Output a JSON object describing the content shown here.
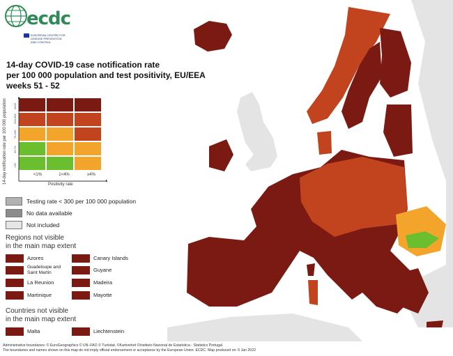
{
  "logo": {
    "text": "ecdc",
    "subtitle_lines": [
      "EUROPEAN CENTRE FOR",
      "DISEASE PREVENTION",
      "AND CONTROL"
    ]
  },
  "title_lines": [
    "14-day COVID-19 case notification rate",
    "per 100 000 population and test positivity, EU/EEA",
    "weeks 51 - 52"
  ],
  "matrix": {
    "y_axis_label": "14-day notification rate per 100 000 population",
    "y_bands": [
      "<20",
      "20-74",
      "75-199",
      "200-499",
      "≥500"
    ],
    "x_axis_label": "Positivity rate",
    "x_ticks": [
      "<1%",
      "1<4%",
      "≥4%"
    ],
    "rows": [
      [
        "#7b1a12",
        "#7b1a12",
        "#7b1a12"
      ],
      [
        "#c1441e",
        "#c1441e",
        "#c1441e"
      ],
      [
        "#f3a52b",
        "#f3a52b",
        "#c1441e"
      ],
      [
        "#6bbf2e",
        "#f3a52b",
        "#f3a52b"
      ],
      [
        "#6bbf2e",
        "#6bbf2e",
        "#f3a52b"
      ]
    ]
  },
  "legend": [
    {
      "label": "Testing rate < 300 per 100 000 population",
      "color": "#b3b3b3"
    },
    {
      "label": "No data available",
      "color": "#8c8c8c"
    },
    {
      "label": "Not included",
      "color": "#e6e6e6"
    }
  ],
  "regions_heading": [
    "Regions not visible",
    "in the main map extent"
  ],
  "regions_left": [
    "Azores",
    "Guadeloupe and Saint Martin",
    "La Reunion",
    "Martinique"
  ],
  "regions_right": [
    "Canary Islands",
    "Guyane",
    "Madeira",
    "Mayotte"
  ],
  "countries_heading": [
    "Countries not visible",
    "in the main map extent"
  ],
  "countries": [
    "Malta",
    "Liechtenstein"
  ],
  "footer_lines": [
    "Administrative boundaries: © EuroGeographics © UN–FAO © Turkstat. ©Kartverket ©Instituto Nacional de Estatística - Statistics Portugal.",
    "The boundaries and names shown on this map do not imply official endorsement or acceptance by the European Union. ECDC. Map produced on: 6 Jan 2022"
  ],
  "colors": {
    "very_high": "#7b1a12",
    "high": "#c1441e",
    "moderate": "#f3a52b",
    "low": "#6bbf2e",
    "not_included": "#e6e6e6",
    "no_data": "#8c8c8c",
    "testing_low": "#b3b3b3"
  }
}
